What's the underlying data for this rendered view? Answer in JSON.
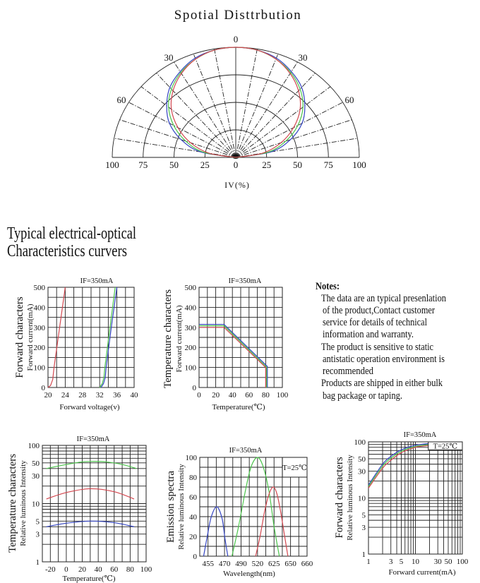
{
  "heading": {
    "line1": "Typical electrical-optical",
    "line2": "Characteristics curvers"
  },
  "notes": {
    "title": "Notes:",
    "lines": [
      "The data are an typical presenlation",
      "of the product,Contact customer",
      "service for details of technical",
      "information and warranty.",
      "The product is sensitive to static",
      "antistatic operation environment is",
      "recommended",
      "Products are shipped in either bulk",
      "bag package or taping."
    ]
  },
  "colors": {
    "red": "#d2474f",
    "green": "#4cc44c",
    "blue": "#3445c2"
  },
  "chart_data": [
    {
      "type": "polar",
      "title": "Spotial Disttrbution",
      "xlabel": "IV(%)",
      "angle_labels": [
        "0",
        "30",
        "30",
        "60",
        "60"
      ],
      "radial_tick_labels": [
        "100",
        "75",
        "50",
        "25",
        "0",
        "25",
        "50",
        "75",
        "100"
      ],
      "angles": [
        -90,
        -80,
        -70,
        -60,
        -50,
        -40,
        -30,
        -20,
        -10,
        0,
        10,
        20,
        30,
        40,
        50,
        60,
        70,
        80,
        90
      ],
      "rings": [
        25,
        50,
        75,
        100
      ],
      "grid": true,
      "series": [
        {
          "color": "#3445c2",
          "values": [
            0,
            29,
            47,
            62,
            73,
            83,
            90,
            96,
            99,
            100,
            99,
            96,
            90,
            83,
            73,
            62,
            47,
            29,
            0
          ]
        },
        {
          "color": "#4cc44c",
          "values": [
            0,
            26,
            43,
            58,
            71,
            81,
            89,
            95,
            99,
            100,
            99,
            95,
            89,
            81,
            71,
            58,
            43,
            26,
            0
          ]
        },
        {
          "color": "#d2474f",
          "values": [
            0,
            22,
            39,
            54,
            68,
            79,
            88,
            95,
            99,
            100,
            99,
            95,
            88,
            79,
            68,
            54,
            39,
            22,
            0
          ]
        }
      ]
    },
    {
      "type": "line",
      "title": "IF=350mA",
      "ylabel": "Forward characters",
      "ylabel_sub": "Forward current(mA)",
      "xlabel": "Forward voltage(v)",
      "xlim": [
        20,
        40
      ],
      "ylim": [
        0,
        500
      ],
      "xticks": [
        20,
        24,
        28,
        32,
        36,
        40
      ],
      "yticks": [
        0,
        100,
        200,
        300,
        400,
        500
      ],
      "grid": true,
      "series": [
        {
          "color": "#d2474f",
          "x": [
            20,
            20.6,
            21.1,
            21.4,
            22.7,
            24
          ],
          "y": [
            0,
            10,
            40,
            100,
            300,
            500
          ]
        },
        {
          "color": "#4cc44c",
          "x": [
            32,
            32.6,
            33,
            33.2,
            34.4,
            35.6
          ],
          "y": [
            0,
            20,
            50,
            100,
            300,
            500
          ]
        },
        {
          "color": "#3445c2",
          "x": [
            32.3,
            32.9,
            33.3,
            33.5,
            34.7,
            36
          ],
          "y": [
            0,
            20,
            50,
            100,
            300,
            500
          ]
        }
      ]
    },
    {
      "type": "line",
      "title": "IF=350mA",
      "ylabel": "Temperature characters",
      "ylabel_sub": "Forward current(mA)",
      "xlabel": "Temperature(℃)",
      "xlim": [
        0,
        100
      ],
      "ylim": [
        0,
        500
      ],
      "xticks": [
        0,
        20,
        40,
        60,
        80,
        100
      ],
      "yticks": [
        0,
        100,
        200,
        300,
        400,
        500
      ],
      "grid": true,
      "series": [
        {
          "color": "#3445c2",
          "x": [
            0,
            30,
            82,
            82
          ],
          "y": [
            315,
            315,
            105,
            0
          ]
        },
        {
          "color": "#4cc44c",
          "x": [
            0,
            30,
            81,
            81
          ],
          "y": [
            308,
            308,
            102,
            0
          ]
        },
        {
          "color": "#d2474f",
          "x": [
            0,
            30,
            80,
            80
          ],
          "y": [
            300,
            300,
            100,
            0
          ]
        }
      ]
    },
    {
      "type": "line",
      "title": "IF=350mA",
      "ylabel": "Temperature characters",
      "ylabel_sub": "Relative luminous Intensity",
      "xlabel": "Temperature(℃)",
      "xlim": [
        -30,
        100
      ],
      "ylim": [
        1,
        100
      ],
      "yscale": "log",
      "xticks": [
        -20,
        0,
        20,
        40,
        60,
        80,
        100
      ],
      "yticks": [
        1,
        3,
        5,
        10,
        30,
        50,
        100
      ],
      "grid": true,
      "series": [
        {
          "color": "#4cc44c",
          "x": [
            -25,
            0,
            20,
            35,
            50,
            70,
            88
          ],
          "y": [
            40,
            47,
            52,
            53,
            52,
            47,
            40
          ]
        },
        {
          "color": "#d2474f",
          "x": [
            -25,
            0,
            30,
            60,
            85
          ],
          "y": [
            12,
            15.5,
            18,
            16,
            12
          ]
        },
        {
          "color": "#3445c2",
          "x": [
            -25,
            0,
            30,
            60,
            85
          ],
          "y": [
            4,
            4.6,
            5,
            4.7,
            4
          ]
        }
      ]
    },
    {
      "type": "line",
      "title": "IF=350mA",
      "ylabel": "Emission spectra",
      "ylabel_sub": "Relative luminous Intensity",
      "xlabel": "Wavelength(nm)",
      "annotation": "T=25℃",
      "ylim": [
        0,
        100
      ],
      "xticks": [
        455,
        470,
        490,
        520,
        625,
        650,
        660
      ],
      "yticks": [
        0,
        20,
        40,
        60,
        80,
        100
      ],
      "grid": true,
      "series": [
        {
          "color": "#3445c2",
          "x": [
            451,
            454.3,
            458,
            463,
            467.8,
            470.5,
            474
          ],
          "y": [
            0,
            20,
            40,
            50,
            38,
            18,
            0
          ]
        },
        {
          "color": "#4cc44c",
          "x": [
            479,
            487,
            497.5,
            508,
            520,
            557,
            593.5,
            625,
            633
          ],
          "y": [
            0,
            30,
            65,
            90,
            100,
            90,
            65,
            30,
            0
          ]
        },
        {
          "color": "#d2474f",
          "x": [
            516.5,
            536,
            564.6,
            593.5,
            620,
            629.4,
            635,
            640.6,
            646
          ],
          "y": [
            0,
            20,
            45,
            63,
            70,
            63,
            45,
            22,
            0
          ]
        }
      ]
    },
    {
      "type": "line",
      "title": "IF=350mA",
      "ylabel": "Forward characters",
      "ylabel_sub": "Relative luminous Intensity",
      "xlabel": "Forward current(mA)",
      "annotation": "T=25℃",
      "xlim": [
        1,
        100
      ],
      "ylim": [
        1,
        100
      ],
      "xscale": "log",
      "yscale": "log",
      "xticks": [
        1,
        3,
        5,
        10,
        30,
        50,
        100
      ],
      "yticks": [
        1,
        3,
        5,
        10,
        30,
        50,
        100
      ],
      "grid": true,
      "series": [
        {
          "color": "#3445c2",
          "x": [
            1,
            2,
            3,
            5,
            10,
            19
          ],
          "y": [
            17,
            40,
            55,
            72,
            87,
            93
          ]
        },
        {
          "color": "#4cc44c",
          "x": [
            1,
            2,
            3,
            5,
            10,
            19
          ],
          "y": [
            16,
            37,
            51,
            68,
            83,
            89
          ]
        },
        {
          "color": "#d2474f",
          "x": [
            1,
            2,
            3,
            5,
            10,
            19
          ],
          "y": [
            15,
            34,
            47,
            64,
            80,
            86
          ]
        }
      ]
    }
  ]
}
